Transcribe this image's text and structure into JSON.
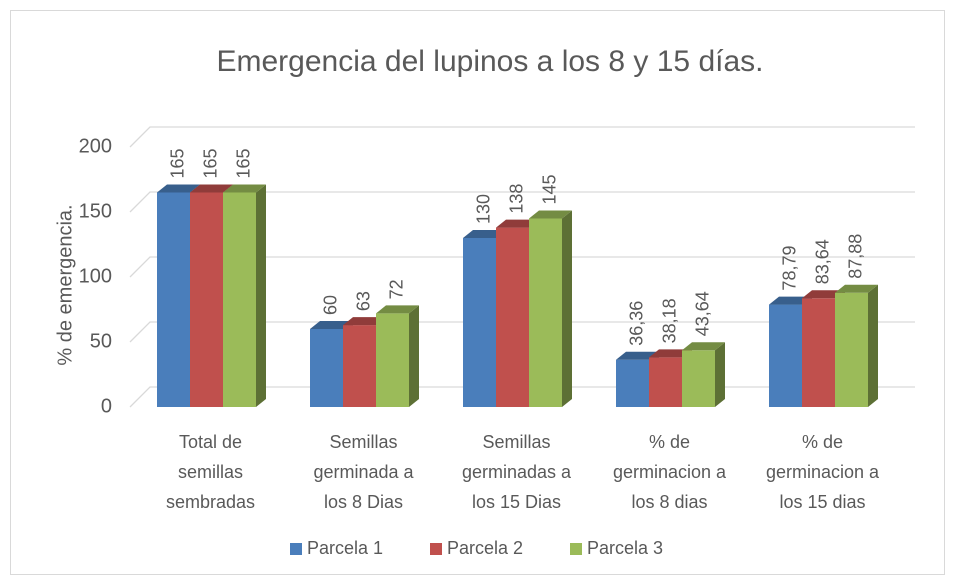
{
  "chart_data": {
    "type": "bar3d",
    "title": "Emergencia del lupinos a los 8 y 15 días.",
    "y_label": "% de emergencia.",
    "categories": [
      "Total de semillas sembradas",
      "Semillas germinada a los 8 Dias",
      "Semillas germinadas a los 15 Dias",
      "% de germinacion a los 8 dias",
      "% de germinacion a los 15 dias"
    ],
    "series": [
      {
        "name": "Parcela 1",
        "color": "#4a7ebb",
        "values": [
          165,
          60,
          130,
          36.36,
          78.79
        ],
        "value_labels": [
          "165",
          "60",
          "130",
          "36,36",
          "78,79"
        ]
      },
      {
        "name": "Parcela 2",
        "color": "#c0504d",
        "values": [
          165,
          63,
          138,
          38.18,
          83.64
        ],
        "value_labels": [
          "165",
          "63",
          "138",
          "38,18",
          "83,64"
        ]
      },
      {
        "name": "Parcela 3",
        "color": "#9bbb59",
        "values": [
          165,
          72,
          145,
          43.64,
          87.88
        ],
        "value_labels": [
          "165",
          "72",
          "145",
          "43,64",
          "87,88"
        ]
      }
    ],
    "ylim": [
      0,
      200
    ],
    "yticks": [
      0,
      50,
      100,
      150,
      200
    ],
    "grid": true,
    "legend": "bottom"
  }
}
